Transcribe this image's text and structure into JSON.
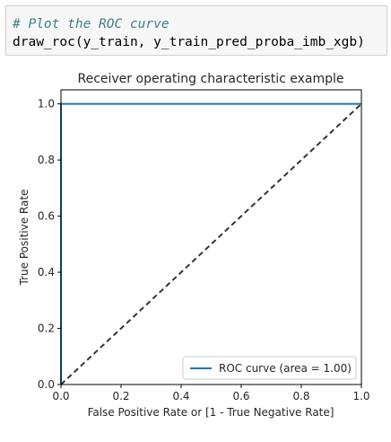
{
  "cell": {
    "comment": "# Plot the ROC curve",
    "code": "draw_roc(y_train, y_train_pred_proba_imb_xgb)"
  },
  "colors": {
    "roc_line": "#1f77b4",
    "diagonal": "#333333",
    "comment": "#408080",
    "cell_background": "#f7f7f7"
  },
  "chart_data": {
    "type": "line",
    "title": "Receiver operating characteristic example",
    "xlabel": "False Positive Rate or [1 - True Negative Rate]",
    "ylabel": "True Positive Rate",
    "xlim": [
      0.0,
      1.0
    ],
    "ylim": [
      0.0,
      1.05
    ],
    "xticks": [
      0.0,
      0.2,
      0.4,
      0.6,
      0.8,
      1.0
    ],
    "xtick_labels": [
      "0.0",
      "0.2",
      "0.4",
      "0.6",
      "0.8",
      "1.0"
    ],
    "yticks": [
      0.0,
      0.2,
      0.4,
      0.6,
      0.8,
      1.0
    ],
    "ytick_labels": [
      "0.0",
      "0.2",
      "0.4",
      "0.6",
      "0.8",
      "1.0"
    ],
    "grid": false,
    "legend_position": "lower right",
    "series": [
      {
        "name": "ROC curve (area = 1.00)",
        "style": "solid",
        "color": "#1f77b4",
        "x": [
          0.0,
          0.0,
          1.0
        ],
        "y": [
          0.0,
          1.0,
          1.0
        ]
      },
      {
        "style": "dashed",
        "color": "#333333",
        "x": [
          0.0,
          1.0
        ],
        "y": [
          0.0,
          1.0
        ]
      }
    ]
  }
}
